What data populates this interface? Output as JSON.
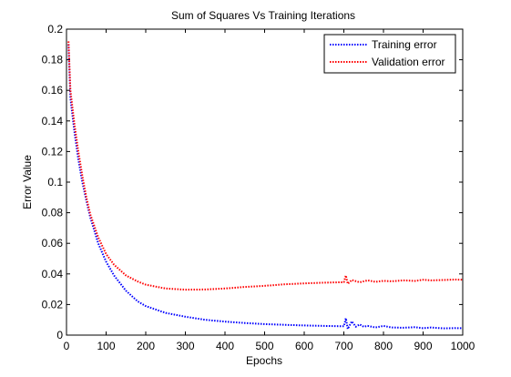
{
  "chart_data": {
    "type": "line",
    "title": "Sum of Squares Vs Training Iterations",
    "xlabel": "Epochs",
    "ylabel": "Error Value",
    "xlim": [
      0,
      1000
    ],
    "ylim": [
      0,
      0.2
    ],
    "x_ticks": [
      0,
      100,
      200,
      300,
      400,
      500,
      600,
      700,
      800,
      900,
      1000
    ],
    "x_tick_labels": [
      "0",
      "100",
      "200",
      "300",
      "400",
      "500",
      "600",
      "700",
      "800",
      "900",
      "1000"
    ],
    "y_ticks": [
      0,
      0.02,
      0.04,
      0.06,
      0.08,
      0.1,
      0.12,
      0.14,
      0.16,
      0.18,
      0.2
    ],
    "y_tick_labels": [
      "0",
      "0.02",
      "0.04",
      "0.06",
      "0.08",
      "0.1",
      "0.12",
      "0.14",
      "0.16",
      "0.18",
      "0.2"
    ],
    "grid": false,
    "legend_position": "top-right",
    "series": [
      {
        "name": "Training error",
        "color": "#0000ff",
        "line_style": "dotted",
        "x": [
          5,
          10,
          20,
          30,
          40,
          50,
          60,
          80,
          100,
          120,
          150,
          180,
          200,
          250,
          300,
          350,
          400,
          450,
          500,
          550,
          600,
          650,
          700,
          705,
          710,
          720,
          730,
          740,
          750,
          760,
          780,
          800,
          820,
          850,
          880,
          900,
          920,
          950,
          980,
          1000
        ],
        "y": [
          0.19,
          0.155,
          0.133,
          0.115,
          0.1,
          0.088,
          0.077,
          0.06,
          0.048,
          0.039,
          0.029,
          0.022,
          0.019,
          0.0145,
          0.012,
          0.01,
          0.0088,
          0.0079,
          0.0072,
          0.0067,
          0.0063,
          0.006,
          0.0058,
          0.011,
          0.004,
          0.009,
          0.0055,
          0.007,
          0.0055,
          0.006,
          0.005,
          0.006,
          0.005,
          0.0048,
          0.0052,
          0.0045,
          0.005,
          0.0044,
          0.0046,
          0.0045
        ]
      },
      {
        "name": "Validation error",
        "color": "#ff0000",
        "line_style": "dotted",
        "x": [
          5,
          10,
          20,
          30,
          40,
          50,
          60,
          80,
          100,
          120,
          150,
          180,
          200,
          250,
          300,
          350,
          400,
          450,
          500,
          550,
          600,
          650,
          700,
          705,
          710,
          720,
          740,
          760,
          780,
          800,
          820,
          850,
          880,
          900,
          920,
          950,
          980,
          1000
        ],
        "y": [
          0.192,
          0.16,
          0.138,
          0.12,
          0.104,
          0.09,
          0.079,
          0.064,
          0.053,
          0.046,
          0.039,
          0.035,
          0.033,
          0.0305,
          0.0297,
          0.0298,
          0.0305,
          0.0315,
          0.0322,
          0.0332,
          0.0338,
          0.0343,
          0.0346,
          0.039,
          0.0335,
          0.036,
          0.0345,
          0.0358,
          0.0348,
          0.0355,
          0.0352,
          0.0358,
          0.0354,
          0.0362,
          0.0358,
          0.036,
          0.0363,
          0.0362
        ]
      }
    ]
  }
}
